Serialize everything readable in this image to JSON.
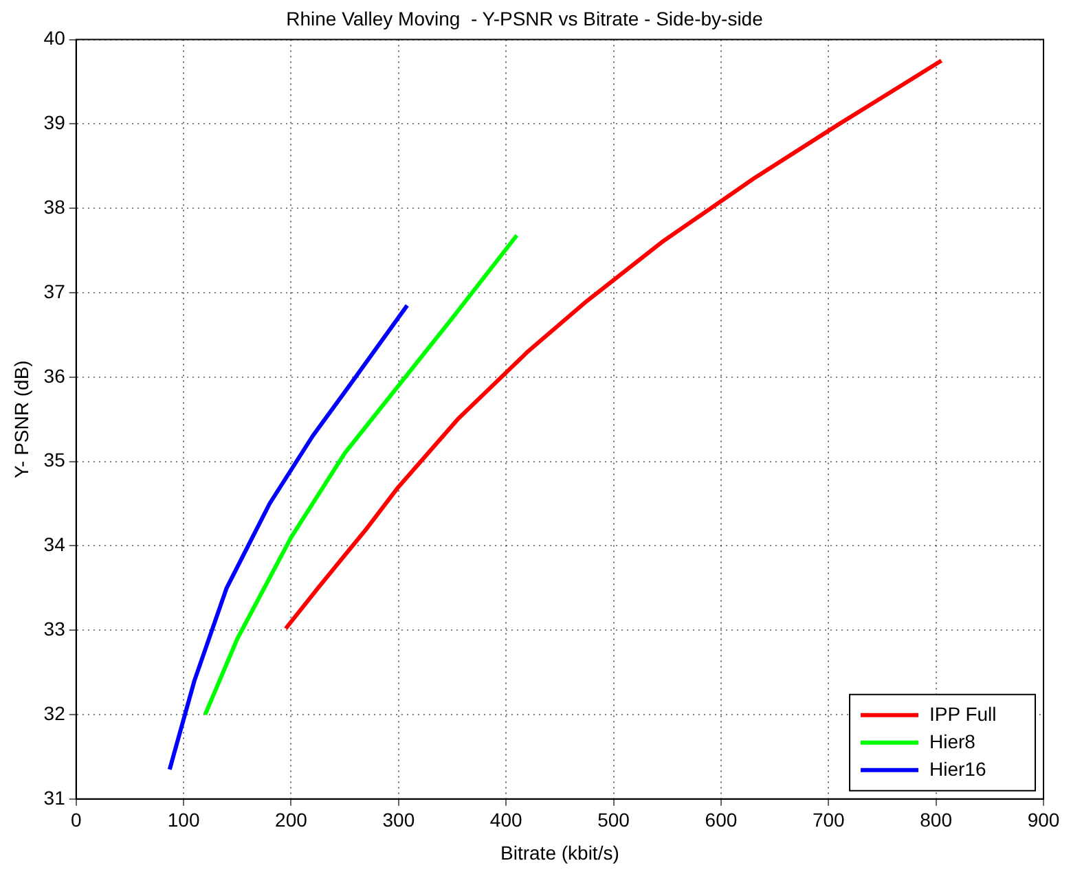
{
  "chart_data": {
    "type": "line",
    "title": "Rhine Valley Moving  - Y-PSNR vs Bitrate - Side-by-side",
    "xlabel": "Bitrate (kbit/s)",
    "ylabel": "Y- PSNR (dB)",
    "xlim": [
      0,
      900
    ],
    "xticks": [
      0,
      100,
      200,
      300,
      400,
      500,
      600,
      700,
      800,
      900
    ],
    "ylim": [
      31,
      40
    ],
    "yticks": [
      31,
      32,
      33,
      34,
      35,
      36,
      37,
      38,
      39,
      40
    ],
    "grid": true,
    "legend": "bottom right",
    "marker": "none",
    "line_style": "solid",
    "series": [
      {
        "name": "IPP Full",
        "color": "#ff0000",
        "x": [
          195,
          225,
          270,
          300,
          355,
          420,
          475,
          545,
          630,
          710,
          805
        ],
        "values": [
          33.02,
          33.5,
          34.2,
          34.7,
          35.5,
          36.3,
          36.9,
          37.6,
          38.35,
          39.0,
          39.75
        ]
      },
      {
        "name": "Hier8",
        "color": "#00ff00",
        "x": [
          120,
          150,
          200,
          250,
          300,
          350,
          410
        ],
        "values": [
          32.0,
          32.9,
          34.1,
          35.1,
          35.9,
          36.7,
          37.68
        ]
      },
      {
        "name": "Hier16",
        "color": "#0000ff",
        "x": [
          87,
          110,
          140,
          180,
          220,
          260,
          308
        ],
        "values": [
          31.35,
          32.4,
          33.5,
          34.5,
          35.3,
          36.0,
          36.85
        ]
      }
    ]
  }
}
